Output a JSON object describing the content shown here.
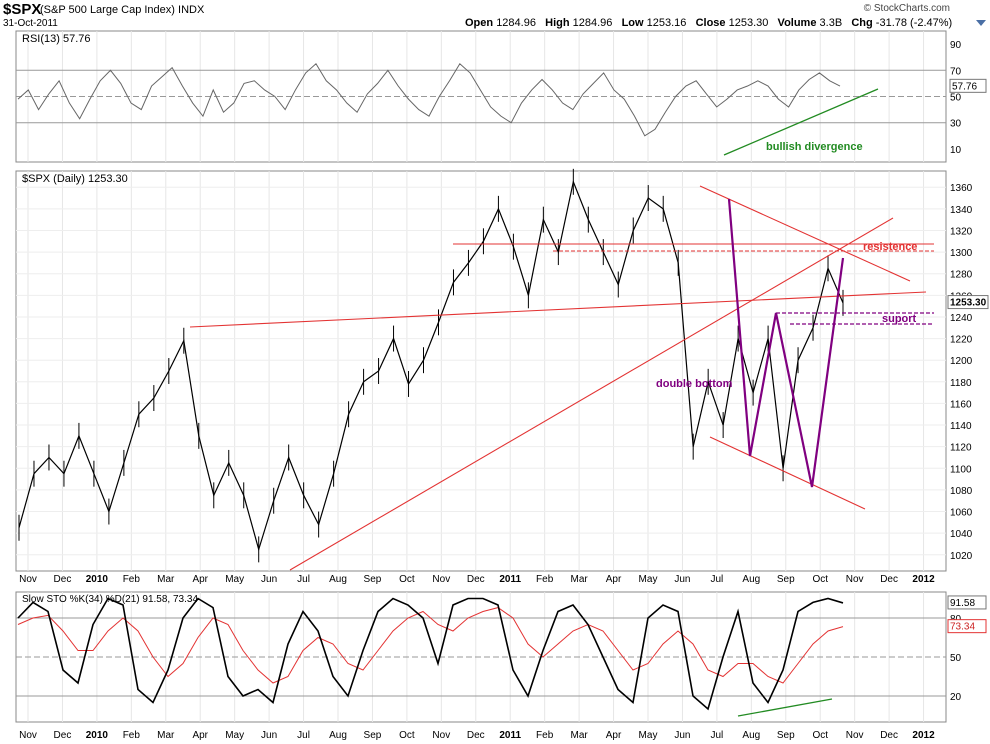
{
  "header": {
    "symbol": "$SPX",
    "description": "(S&P 500 Large Cap Index)",
    "exchange": "INDX",
    "date": "31-Oct-2011",
    "open_label": "Open",
    "open": "1284.96",
    "high_label": "High",
    "high": "1284.96",
    "low_label": "Low",
    "low": "1253.16",
    "close_label": "Close",
    "close": "1253.30",
    "volume_label": "Volume",
    "volume": "3.3B",
    "chg_label": "Chg",
    "chg": "-31.78 (-2.47%)",
    "brand": "© StockCharts.com"
  },
  "chart_data": [
    {
      "type": "line",
      "title": "RSI(13) 57.76",
      "last_value": "57.76",
      "ylim": [
        0,
        100
      ],
      "yticks": [
        10,
        30,
        50,
        70,
        90
      ],
      "reference_lines": [
        30,
        50,
        70
      ],
      "annotations": [
        "bullish divergence"
      ],
      "series": [
        {
          "values": [
            48,
            55,
            40,
            52,
            62,
            45,
            33,
            48,
            62,
            70,
            60,
            45,
            40,
            58,
            65,
            72,
            58,
            45,
            35,
            55,
            38,
            45,
            60,
            62,
            55,
            50,
            40,
            55,
            68,
            75,
            62,
            55,
            45,
            38,
            52,
            60,
            70,
            58,
            48,
            40,
            35,
            50,
            62,
            75,
            68,
            55,
            42,
            35,
            30,
            45,
            55,
            63,
            55,
            45,
            40,
            52,
            60,
            68,
            55,
            48,
            35,
            20,
            25,
            38,
            50,
            58,
            62,
            52,
            42,
            48,
            55,
            58,
            62,
            58,
            48,
            42,
            55,
            63,
            68,
            62,
            58
          ]
        }
      ]
    },
    {
      "type": "line",
      "title": "$SPX (Daily) 1253.30",
      "last_value": "1253.30",
      "ylim": [
        1005,
        1375
      ],
      "yticks": [
        1020,
        1040,
        1060,
        1080,
        1100,
        1120,
        1140,
        1160,
        1180,
        1200,
        1220,
        1240,
        1260,
        1280,
        1300,
        1320,
        1340,
        1360
      ],
      "x": [
        "2009-11-02",
        "2009-11-16",
        "2009-12-01",
        "2009-12-15",
        "2010-01-04",
        "2010-01-19",
        "2010-02-05",
        "2010-02-19",
        "2010-03-05",
        "2010-03-19",
        "2010-04-05",
        "2010-04-23",
        "2010-05-06",
        "2010-05-20",
        "2010-06-07",
        "2010-06-21",
        "2010-07-02",
        "2010-07-19",
        "2010-08-02",
        "2010-08-16",
        "2010-08-26",
        "2010-09-13",
        "2010-09-27",
        "2010-10-11",
        "2010-10-25",
        "2010-11-05",
        "2010-11-16",
        "2010-12-01",
        "2010-12-15",
        "2011-01-03",
        "2011-01-18",
        "2011-02-01",
        "2011-02-18",
        "2011-03-04",
        "2011-03-16",
        "2011-04-01",
        "2011-04-18",
        "2011-05-02",
        "2011-05-16",
        "2011-06-01",
        "2011-06-15",
        "2011-06-30",
        "2011-07-07",
        "2011-07-21",
        "2011-08-01",
        "2011-08-08",
        "2011-08-15",
        "2011-08-22",
        "2011-08-31",
        "2011-09-09",
        "2011-09-20",
        "2011-10-03",
        "2011-10-11",
        "2011-10-20",
        "2011-10-27",
        "2011-10-31"
      ],
      "values": [
        1045,
        1095,
        1110,
        1095,
        1130,
        1095,
        1060,
        1105,
        1150,
        1165,
        1190,
        1218,
        1130,
        1075,
        1105,
        1075,
        1025,
        1070,
        1110,
        1075,
        1048,
        1095,
        1150,
        1180,
        1190,
        1220,
        1178,
        1200,
        1235,
        1272,
        1290,
        1310,
        1340,
        1305,
        1260,
        1330,
        1300,
        1365,
        1330,
        1300,
        1270,
        1320,
        1350,
        1340,
        1290,
        1120,
        1180,
        1140,
        1220,
        1170,
        1220,
        1100,
        1200,
        1230,
        1285,
        1253
      ],
      "annotations": [
        "resistence",
        "suport",
        "double bottom"
      ],
      "x_tick_labels": [
        "Nov",
        "Dec",
        "2010",
        "Feb",
        "Mar",
        "Apr",
        "May",
        "Jun",
        "Jul",
        "Aug",
        "Sep",
        "Oct",
        "Nov",
        "Dec",
        "2011",
        "Feb",
        "Mar",
        "Apr",
        "May",
        "Jun",
        "Jul",
        "Aug",
        "Sep",
        "Oct",
        "Nov",
        "Dec",
        "2012"
      ]
    },
    {
      "type": "line",
      "title": "Slow STO %K(34) %D(21) 91.58, 73.34",
      "k_last": "91.58",
      "d_last": "73.34",
      "ylim": [
        0,
        100
      ],
      "yticks": [
        20,
        50,
        80
      ],
      "reference_lines": [
        20,
        50,
        80
      ],
      "series": [
        {
          "name": "%K",
          "values": [
            80,
            92,
            85,
            40,
            30,
            75,
            95,
            90,
            25,
            15,
            40,
            80,
            95,
            88,
            35,
            20,
            25,
            15,
            60,
            85,
            70,
            35,
            20,
            55,
            85,
            95,
            90,
            80,
            45,
            90,
            95,
            95,
            90,
            40,
            20,
            55,
            85,
            90,
            75,
            50,
            25,
            15,
            80,
            90,
            85,
            20,
            10,
            50,
            85,
            30,
            15,
            40,
            85,
            92,
            95,
            91.58
          ]
        },
        {
          "name": "%D",
          "values": [
            75,
            80,
            82,
            70,
            55,
            55,
            70,
            80,
            70,
            50,
            35,
            45,
            65,
            80,
            75,
            55,
            40,
            30,
            35,
            55,
            65,
            60,
            45,
            40,
            55,
            70,
            80,
            85,
            75,
            70,
            80,
            85,
            88,
            80,
            60,
            50,
            60,
            70,
            75,
            70,
            55,
            40,
            45,
            60,
            70,
            60,
            40,
            35,
            45,
            45,
            35,
            30,
            45,
            60,
            70,
            73.34
          ]
        }
      ],
      "x_tick_labels": [
        "Nov",
        "Dec",
        "2010",
        "Feb",
        "Mar",
        "Apr",
        "May",
        "Jun",
        "Jul",
        "Aug",
        "Sep",
        "Oct",
        "Nov",
        "Dec",
        "2011",
        "Feb",
        "Mar",
        "Apr",
        "May",
        "Jun",
        "Jul",
        "Aug",
        "Sep",
        "Oct",
        "Nov",
        "Dec",
        "2012"
      ]
    }
  ],
  "colors": {
    "price": "#000000",
    "rsi": "#666666",
    "trend": "#e33333",
    "pattern": "#800080",
    "divergence": "#228b22",
    "stoD": "#e33333"
  }
}
